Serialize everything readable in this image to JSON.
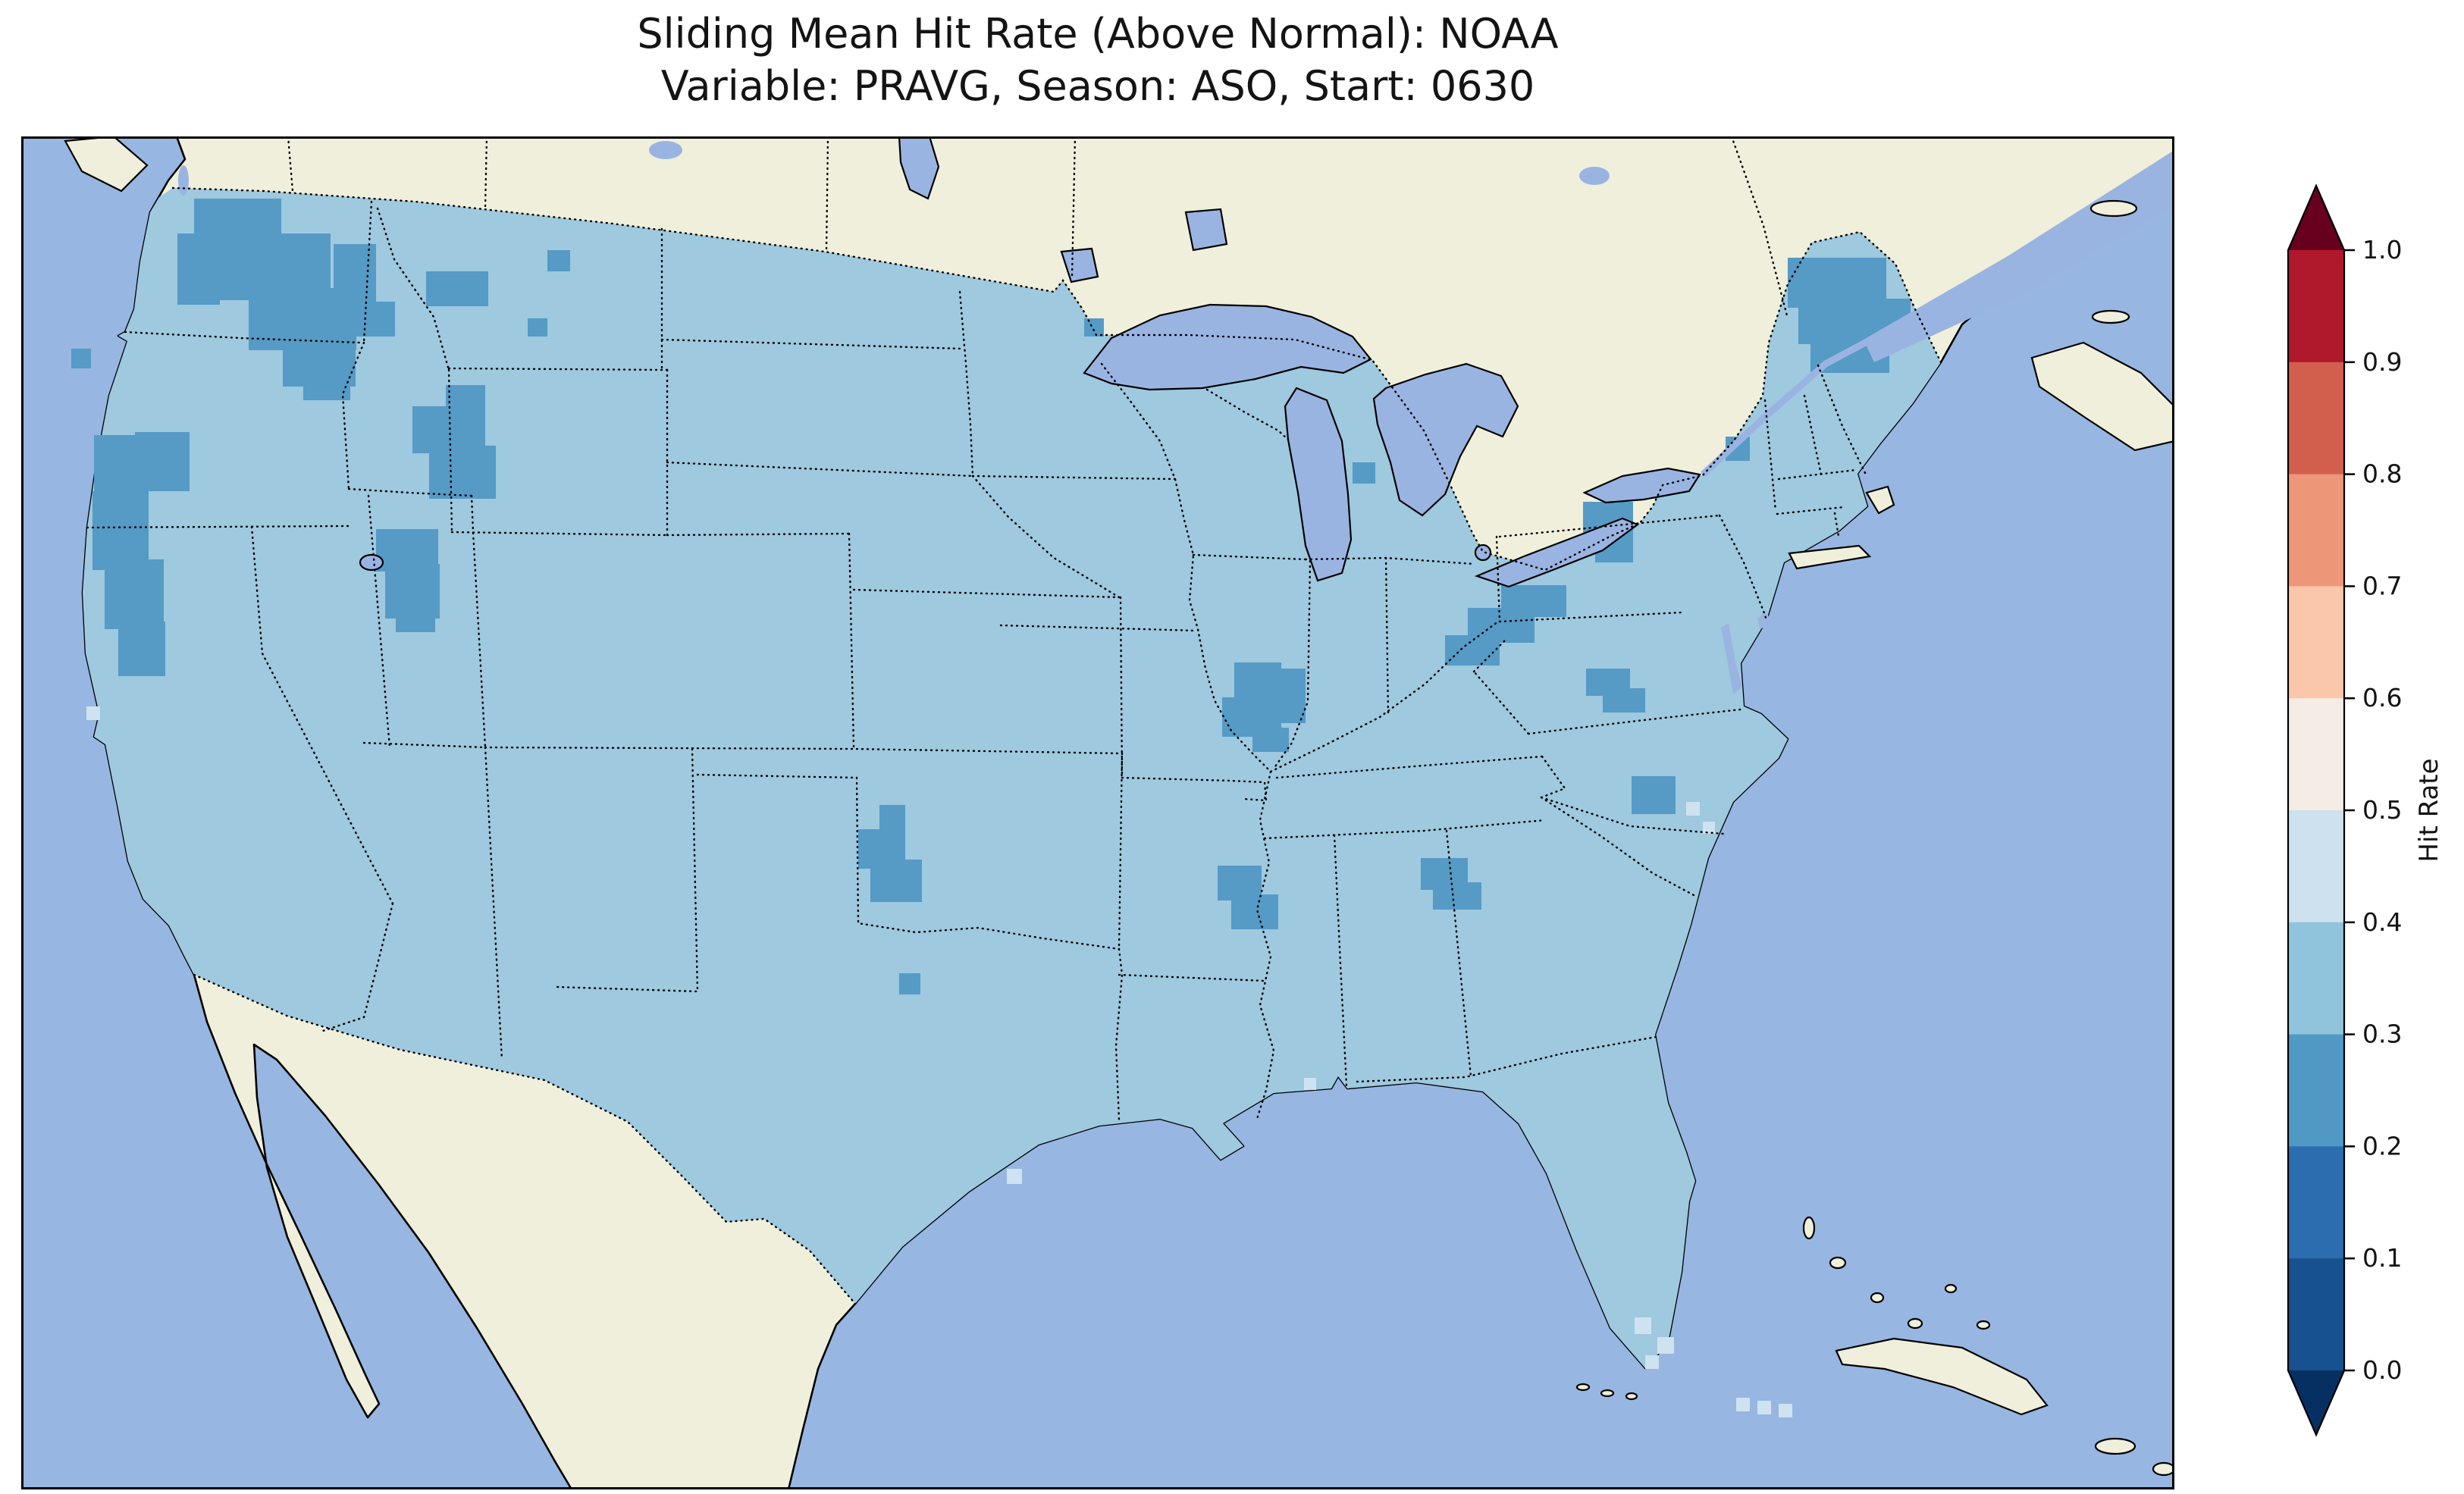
{
  "figure": {
    "title_line1": "Sliding Mean Hit Rate (Above Normal): NOAA",
    "title_line2": "Variable: PRAVG, Season: ASO, Start: 0630"
  },
  "colorbar": {
    "label": "Hit Rate",
    "tick_labels": [
      "1.0",
      "0.9",
      "0.8",
      "0.7",
      "0.6",
      "0.5",
      "0.4",
      "0.3",
      "0.2",
      "0.1",
      "0.0"
    ],
    "segment_colors_top_to_bottom": [
      "#b0182b",
      "#d25f4d",
      "#ee9678",
      "#fbc7ab",
      "#f5ece5",
      "#cde1ee",
      "#90c3dc",
      "#5199c5",
      "#2c6db0",
      "#175190"
    ],
    "extend_over_color": "#67001f",
    "extend_under_color": "#053061"
  },
  "map_colors": {
    "ocean": "#97b6e1",
    "land": "#efefdb",
    "lake": "#9ab4e2",
    "base": "#9ec9df",
    "low": "#569ac6",
    "light": "#cfe2ef"
  },
  "chart_data": {
    "type": "heatmap",
    "subtype": "geographic-gridded-map",
    "title": "Sliding Mean Hit Rate (Above Normal): NOAA",
    "subtitle": "Variable: PRAVG, Season: ASO, Start: 0630",
    "source_label": "NOAA",
    "variable": "PRAVG",
    "season": "ASO",
    "start_date": "0630",
    "metric": "Hit Rate (Above Normal)",
    "region": "Contiguous United States with surrounding Canada, Mexico, Great Lakes, Atlantic and Pacific",
    "colormap": "RdBu reversed, discrete 0.1 bins, colorbar extended with triangles on both ends",
    "colorbar_label": "Hit Rate",
    "colorbar_ticks": [
      1.0,
      0.9,
      0.8,
      0.7,
      0.6,
      0.5,
      0.4,
      0.3,
      0.2,
      0.1,
      0.0
    ],
    "colorbar_orientation": "vertical, right side",
    "value_range_shown_on_map": [
      0.2,
      0.5
    ],
    "dominant_bin": "0.3-0.4 covers most of the contiguous United States",
    "lower_bin_regions_0p2_0p3": [
      "northern Idaho and western Montana",
      "northeastern Oregon",
      "central and north-central Montana",
      "north-central Wyoming (Bighorn area)",
      "north-central Utah",
      "coastal and northern California",
      "northern Maine (large patch)",
      "western New York / northern Pennsylvania",
      "eastern Ohio into West Virginia",
      "southern Illinois / southeastern Missouri confluence area",
      "southeastern Oklahoma",
      "central Mississippi",
      "central Georgia",
      "central North Carolina",
      "coastal South Carolina",
      "central Lower Michigan (small)",
      "small cells along Montana / Dakota border"
    ],
    "higher_bin_cells_0p4_0p5": [
      "southern Florida tip",
      "cells near the South Carolina coast",
      "scattered single coastal cells (Texas coast, Gulf coast, northern California coast)"
    ],
    "base_layers": "cream land (non-US masked), periwinkle ocean and lakes, dotted state, province and country borders, solid coastlines"
  }
}
